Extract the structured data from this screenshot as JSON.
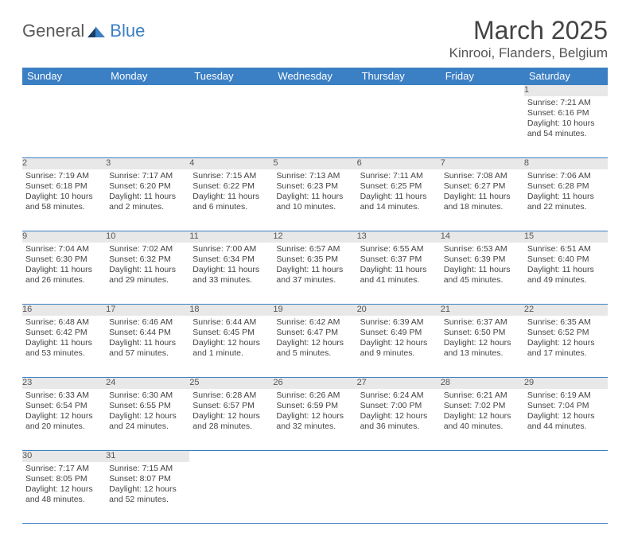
{
  "brand": {
    "part1": "General",
    "part2": "Blue"
  },
  "title": "March 2025",
  "location": "Kinrooi, Flanders, Belgium",
  "colors": {
    "header_bg": "#3b7fc4",
    "header_fg": "#ffffff",
    "daynum_bg": "#e8e8e8",
    "border": "#3b7fc4",
    "text": "#444444"
  },
  "day_headers": [
    "Sunday",
    "Monday",
    "Tuesday",
    "Wednesday",
    "Thursday",
    "Friday",
    "Saturday"
  ],
  "weeks": [
    [
      null,
      null,
      null,
      null,
      null,
      null,
      {
        "n": "1",
        "sr": "7:21 AM",
        "ss": "6:16 PM",
        "dl": "10 hours and 54 minutes."
      }
    ],
    [
      {
        "n": "2",
        "sr": "7:19 AM",
        "ss": "6:18 PM",
        "dl": "10 hours and 58 minutes."
      },
      {
        "n": "3",
        "sr": "7:17 AM",
        "ss": "6:20 PM",
        "dl": "11 hours and 2 minutes."
      },
      {
        "n": "4",
        "sr": "7:15 AM",
        "ss": "6:22 PM",
        "dl": "11 hours and 6 minutes."
      },
      {
        "n": "5",
        "sr": "7:13 AM",
        "ss": "6:23 PM",
        "dl": "11 hours and 10 minutes."
      },
      {
        "n": "6",
        "sr": "7:11 AM",
        "ss": "6:25 PM",
        "dl": "11 hours and 14 minutes."
      },
      {
        "n": "7",
        "sr": "7:08 AM",
        "ss": "6:27 PM",
        "dl": "11 hours and 18 minutes."
      },
      {
        "n": "8",
        "sr": "7:06 AM",
        "ss": "6:28 PM",
        "dl": "11 hours and 22 minutes."
      }
    ],
    [
      {
        "n": "9",
        "sr": "7:04 AM",
        "ss": "6:30 PM",
        "dl": "11 hours and 26 minutes."
      },
      {
        "n": "10",
        "sr": "7:02 AM",
        "ss": "6:32 PM",
        "dl": "11 hours and 29 minutes."
      },
      {
        "n": "11",
        "sr": "7:00 AM",
        "ss": "6:34 PM",
        "dl": "11 hours and 33 minutes."
      },
      {
        "n": "12",
        "sr": "6:57 AM",
        "ss": "6:35 PM",
        "dl": "11 hours and 37 minutes."
      },
      {
        "n": "13",
        "sr": "6:55 AM",
        "ss": "6:37 PM",
        "dl": "11 hours and 41 minutes."
      },
      {
        "n": "14",
        "sr": "6:53 AM",
        "ss": "6:39 PM",
        "dl": "11 hours and 45 minutes."
      },
      {
        "n": "15",
        "sr": "6:51 AM",
        "ss": "6:40 PM",
        "dl": "11 hours and 49 minutes."
      }
    ],
    [
      {
        "n": "16",
        "sr": "6:48 AM",
        "ss": "6:42 PM",
        "dl": "11 hours and 53 minutes."
      },
      {
        "n": "17",
        "sr": "6:46 AM",
        "ss": "6:44 PM",
        "dl": "11 hours and 57 minutes."
      },
      {
        "n": "18",
        "sr": "6:44 AM",
        "ss": "6:45 PM",
        "dl": "12 hours and 1 minute."
      },
      {
        "n": "19",
        "sr": "6:42 AM",
        "ss": "6:47 PM",
        "dl": "12 hours and 5 minutes."
      },
      {
        "n": "20",
        "sr": "6:39 AM",
        "ss": "6:49 PM",
        "dl": "12 hours and 9 minutes."
      },
      {
        "n": "21",
        "sr": "6:37 AM",
        "ss": "6:50 PM",
        "dl": "12 hours and 13 minutes."
      },
      {
        "n": "22",
        "sr": "6:35 AM",
        "ss": "6:52 PM",
        "dl": "12 hours and 17 minutes."
      }
    ],
    [
      {
        "n": "23",
        "sr": "6:33 AM",
        "ss": "6:54 PM",
        "dl": "12 hours and 20 minutes."
      },
      {
        "n": "24",
        "sr": "6:30 AM",
        "ss": "6:55 PM",
        "dl": "12 hours and 24 minutes."
      },
      {
        "n": "25",
        "sr": "6:28 AM",
        "ss": "6:57 PM",
        "dl": "12 hours and 28 minutes."
      },
      {
        "n": "26",
        "sr": "6:26 AM",
        "ss": "6:59 PM",
        "dl": "12 hours and 32 minutes."
      },
      {
        "n": "27",
        "sr": "6:24 AM",
        "ss": "7:00 PM",
        "dl": "12 hours and 36 minutes."
      },
      {
        "n": "28",
        "sr": "6:21 AM",
        "ss": "7:02 PM",
        "dl": "12 hours and 40 minutes."
      },
      {
        "n": "29",
        "sr": "6:19 AM",
        "ss": "7:04 PM",
        "dl": "12 hours and 44 minutes."
      }
    ],
    [
      {
        "n": "30",
        "sr": "7:17 AM",
        "ss": "8:05 PM",
        "dl": "12 hours and 48 minutes."
      },
      {
        "n": "31",
        "sr": "7:15 AM",
        "ss": "8:07 PM",
        "dl": "12 hours and 52 minutes."
      },
      null,
      null,
      null,
      null,
      null
    ]
  ],
  "labels": {
    "sunrise": "Sunrise:",
    "sunset": "Sunset:",
    "daylight": "Daylight:"
  }
}
